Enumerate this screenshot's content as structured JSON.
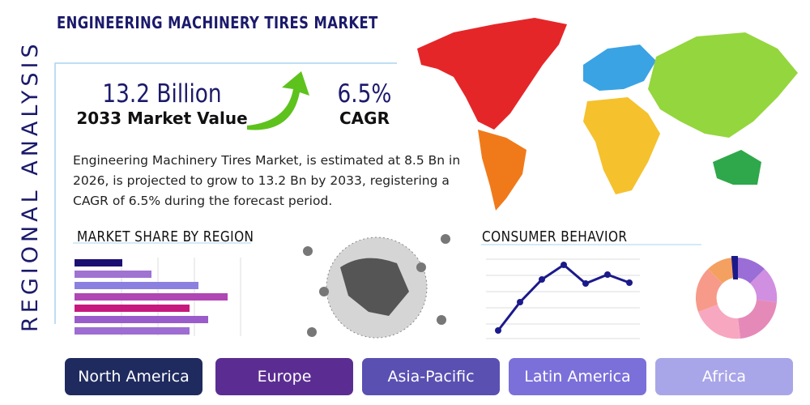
{
  "header": {
    "title": "ENGINEERING MACHINERY TIRES MARKET",
    "side_label": "REGIONAL ANALYSIS"
  },
  "stats": [
    {
      "value": "13.2 Billion",
      "label": "2033 Market Value"
    },
    {
      "value": "6.5%",
      "label": "CAGR"
    }
  ],
  "description": "Engineering Machinery Tires Market, is estimated at 8.5 Bn in 2026, is projected to grow to 13.2 Bn by 2033, registering a CAGR of 6.5% during the forecast period.",
  "sections": {
    "market_share": "MARKET SHARE BY REGION",
    "consumer_behavior": "CONSUMER BEHAVIOR"
  },
  "regions": [
    "North America",
    "Europe",
    "Asia-Pacific",
    "Latin America",
    "Africa"
  ]
}
